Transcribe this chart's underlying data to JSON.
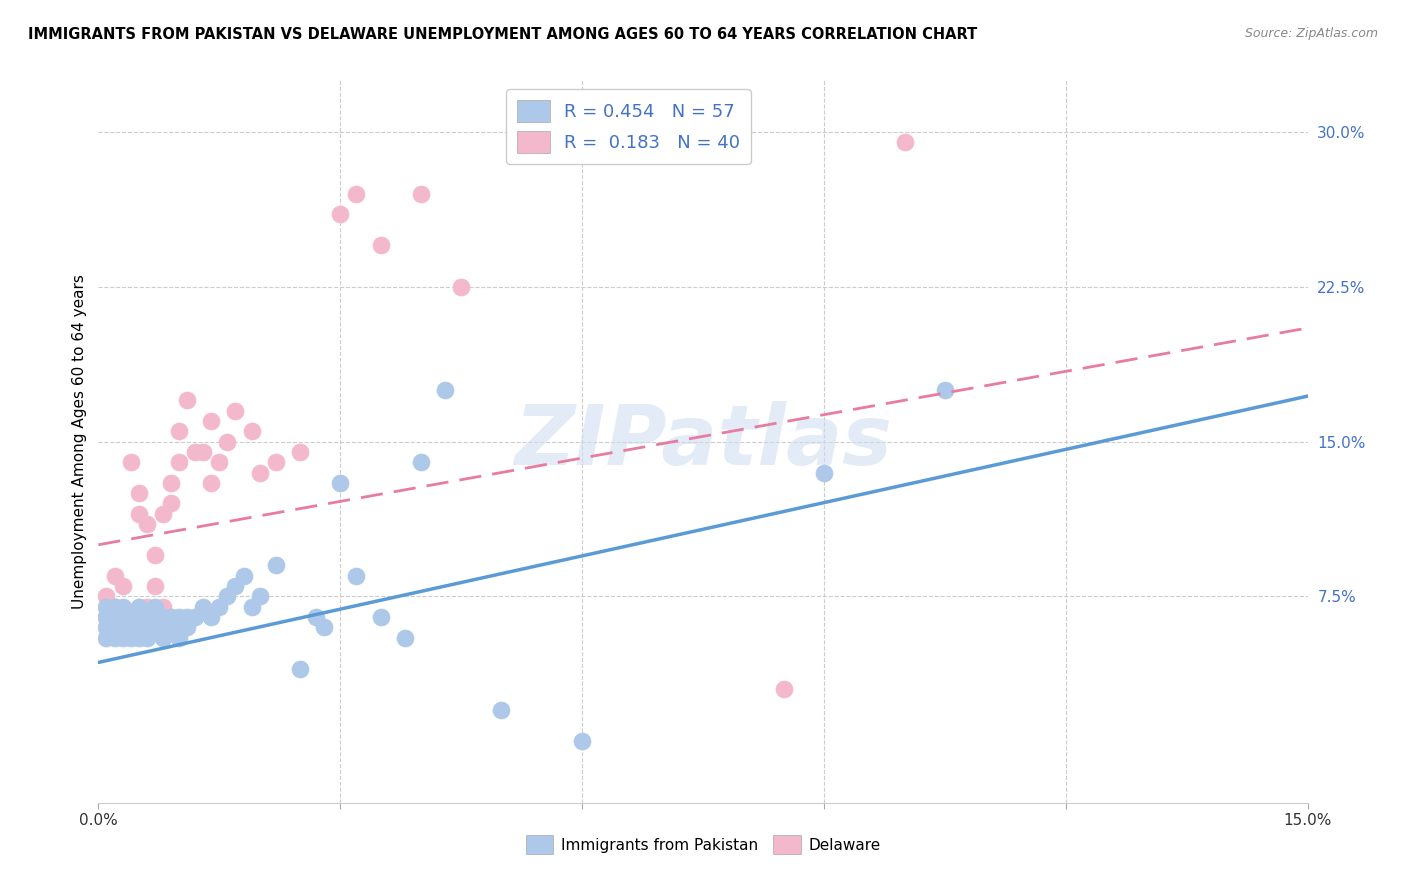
{
  "title": "IMMIGRANTS FROM PAKISTAN VS DELAWARE UNEMPLOYMENT AMONG AGES 60 TO 64 YEARS CORRELATION CHART",
  "source": "Source: ZipAtlas.com",
  "ylabel": "Unemployment Among Ages 60 to 64 years",
  "xlim": [
    0.0,
    0.15
  ],
  "ylim": [
    -0.025,
    0.325
  ],
  "x_tick_positions": [
    0.0,
    0.03,
    0.06,
    0.09,
    0.12,
    0.15
  ],
  "x_tick_labels": [
    "0.0%",
    "",
    "",
    "",
    "",
    "15.0%"
  ],
  "y_ticks_right": [
    0.075,
    0.15,
    0.225,
    0.3
  ],
  "y_tick_labels_right": [
    "7.5%",
    "15.0%",
    "22.5%",
    "30.0%"
  ],
  "legend_r1": "R = 0.454",
  "legend_n1": "N = 57",
  "legend_r2": "R =  0.183",
  "legend_n2": "N = 40",
  "legend_label1": "Immigrants from Pakistan",
  "legend_label2": "Delaware",
  "blue_scatter_x": [
    0.001,
    0.001,
    0.001,
    0.001,
    0.002,
    0.002,
    0.002,
    0.002,
    0.003,
    0.003,
    0.003,
    0.003,
    0.004,
    0.004,
    0.004,
    0.005,
    0.005,
    0.005,
    0.005,
    0.006,
    0.006,
    0.006,
    0.007,
    0.007,
    0.007,
    0.008,
    0.008,
    0.008,
    0.009,
    0.009,
    0.01,
    0.01,
    0.011,
    0.011,
    0.012,
    0.013,
    0.014,
    0.015,
    0.016,
    0.017,
    0.018,
    0.019,
    0.02,
    0.022,
    0.025,
    0.027,
    0.028,
    0.03,
    0.032,
    0.035,
    0.038,
    0.04,
    0.043,
    0.05,
    0.06,
    0.09,
    0.105
  ],
  "blue_scatter_y": [
    0.055,
    0.06,
    0.065,
    0.07,
    0.055,
    0.06,
    0.065,
    0.07,
    0.055,
    0.06,
    0.065,
    0.07,
    0.055,
    0.06,
    0.065,
    0.055,
    0.06,
    0.065,
    0.07,
    0.055,
    0.06,
    0.065,
    0.06,
    0.065,
    0.07,
    0.055,
    0.06,
    0.065,
    0.06,
    0.065,
    0.055,
    0.065,
    0.06,
    0.065,
    0.065,
    0.07,
    0.065,
    0.07,
    0.075,
    0.08,
    0.085,
    0.07,
    0.075,
    0.09,
    0.04,
    0.065,
    0.06,
    0.13,
    0.085,
    0.065,
    0.055,
    0.14,
    0.175,
    0.02,
    0.005,
    0.135,
    0.175
  ],
  "pink_scatter_x": [
    0.001,
    0.001,
    0.002,
    0.002,
    0.003,
    0.003,
    0.004,
    0.004,
    0.005,
    0.005,
    0.005,
    0.006,
    0.006,
    0.007,
    0.007,
    0.008,
    0.008,
    0.009,
    0.009,
    0.01,
    0.01,
    0.011,
    0.012,
    0.013,
    0.014,
    0.014,
    0.015,
    0.016,
    0.017,
    0.019,
    0.02,
    0.022,
    0.025,
    0.03,
    0.032,
    0.035,
    0.04,
    0.045,
    0.085,
    0.1
  ],
  "pink_scatter_y": [
    0.065,
    0.075,
    0.07,
    0.085,
    0.065,
    0.08,
    0.065,
    0.14,
    0.07,
    0.115,
    0.125,
    0.07,
    0.11,
    0.08,
    0.095,
    0.07,
    0.115,
    0.12,
    0.13,
    0.14,
    0.155,
    0.17,
    0.145,
    0.145,
    0.16,
    0.13,
    0.14,
    0.15,
    0.165,
    0.155,
    0.135,
    0.14,
    0.145,
    0.26,
    0.27,
    0.245,
    0.27,
    0.225,
    0.03,
    0.295
  ],
  "blue_line_x": [
    0.0,
    0.15
  ],
  "blue_line_y": [
    0.043,
    0.172
  ],
  "pink_line_x": [
    0.0,
    0.15
  ],
  "pink_line_y": [
    0.1,
    0.205
  ],
  "blue_color": "#5b9bd5",
  "pink_color": "#e87ca0",
  "blue_scatter_color": "#adc8e8",
  "pink_scatter_color": "#f4b8cc",
  "watermark_text": "ZIPatlas",
  "background_color": "#ffffff",
  "grid_color": "#cccccc"
}
